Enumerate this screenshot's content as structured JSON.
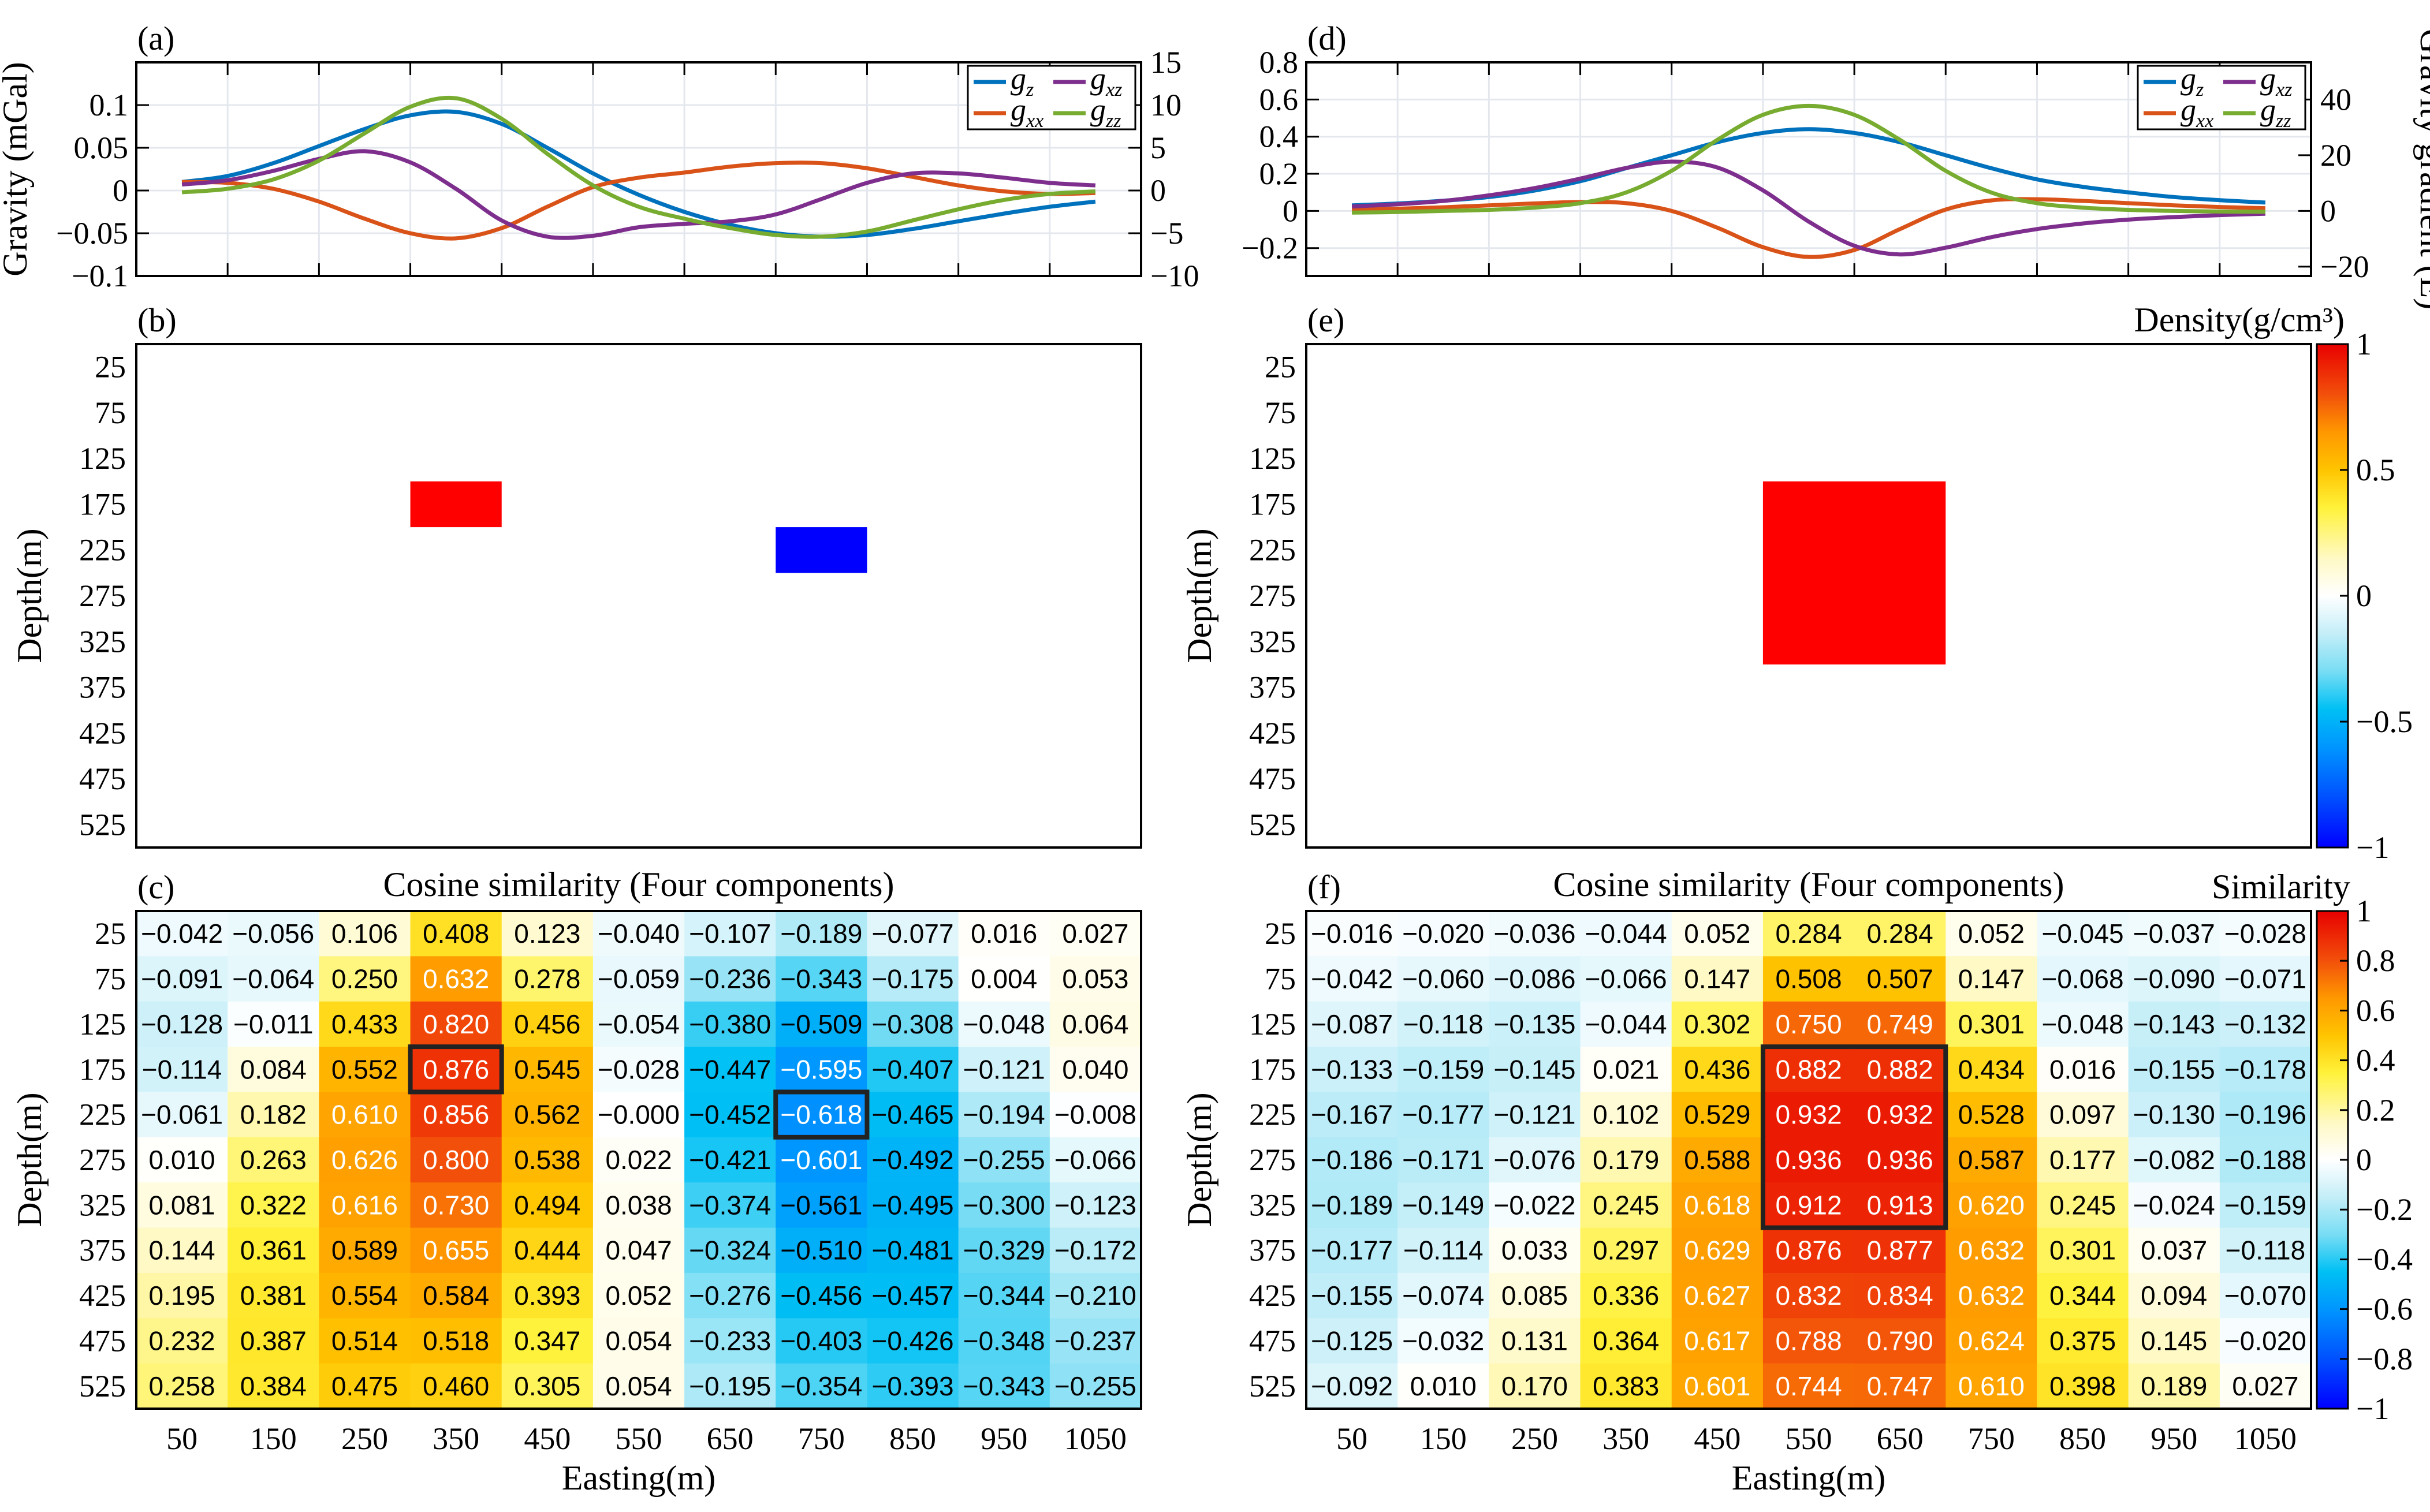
{
  "colors": {
    "gz": "#0072BD",
    "gxx": "#D95319",
    "gxz": "#7E2F8E",
    "gzz": "#77AC30",
    "positive_body": "#FF0000",
    "negative_body": "#0000FF",
    "highlight_box": "#222222"
  },
  "colormap": {
    "name": "jet-like diverging (blue-cyan-white-yellow-red)",
    "stops": [
      {
        "v": -1.0,
        "c": "#0000FF"
      },
      {
        "v": -0.8,
        "c": "#0050FF"
      },
      {
        "v": -0.6,
        "c": "#0096FF"
      },
      {
        "v": -0.45,
        "c": "#00C0F4"
      },
      {
        "v": -0.3,
        "c": "#78DDF4"
      },
      {
        "v": -0.15,
        "c": "#C4EEF8"
      },
      {
        "v": 0.0,
        "c": "#FFFFFF"
      },
      {
        "v": 0.15,
        "c": "#FFF9C4"
      },
      {
        "v": 0.35,
        "c": "#FFF23A"
      },
      {
        "v": 0.5,
        "c": "#FFC400"
      },
      {
        "v": 0.65,
        "c": "#FF9800"
      },
      {
        "v": 0.8,
        "c": "#F2500A"
      },
      {
        "v": 1.0,
        "c": "#E80000"
      }
    ]
  },
  "chart_data": [
    {
      "id": "a",
      "panel_label": "(a)",
      "type": "line",
      "x": [
        50,
        100,
        150,
        200,
        250,
        300,
        350,
        400,
        450,
        500,
        550,
        600,
        650,
        700,
        750,
        800,
        850,
        900,
        950,
        1000,
        1050
      ],
      "xlim": [
        0,
        1100
      ],
      "ylabel_left": "Gravity (mGal)",
      "ylabel_right": "",
      "ylim_left": [
        -0.1,
        0.15
      ],
      "ylim_right": [
        -10,
        15
      ],
      "yticks_left": [
        -0.1,
        -0.05,
        0,
        0.05,
        0.1
      ],
      "ytick_labels_left": [
        "−0.1",
        "−0.05",
        "0",
        "0.05",
        "0.1"
      ],
      "yticks_right": [
        -10,
        -5,
        0,
        5,
        10,
        15
      ],
      "ytick_labels_right": [
        "−10",
        "−5",
        "0",
        "5",
        "10",
        "15"
      ],
      "legend": [
        "g_z",
        "g_xx",
        "g_xz",
        "g_zz"
      ],
      "legend_position": "top-right",
      "series": [
        {
          "name": "g_z",
          "axis": "left",
          "values": [
            0.01,
            0.017,
            0.032,
            0.052,
            0.072,
            0.088,
            0.092,
            0.078,
            0.05,
            0.02,
            -0.005,
            -0.025,
            -0.04,
            -0.05,
            -0.054,
            -0.052,
            -0.045,
            -0.036,
            -0.027,
            -0.019,
            -0.013
          ]
        },
        {
          "name": "g_xx",
          "axis": "right",
          "values": [
            1.0,
            0.9,
            0.2,
            -1.3,
            -3.3,
            -5.0,
            -5.6,
            -4.4,
            -1.9,
            0.4,
            1.5,
            2.1,
            2.8,
            3.2,
            3.2,
            2.6,
            1.6,
            0.6,
            -0.1,
            -0.4,
            -0.3
          ]
        },
        {
          "name": "g_xz",
          "axis": "right",
          "values": [
            0.7,
            1.2,
            2.3,
            3.7,
            4.6,
            3.3,
            0.2,
            -3.5,
            -5.4,
            -5.3,
            -4.3,
            -3.9,
            -3.6,
            -2.8,
            -1.0,
            0.9,
            2.0,
            2.0,
            1.5,
            0.9,
            0.6
          ]
        },
        {
          "name": "g_zz",
          "axis": "right",
          "values": [
            -0.2,
            0.2,
            1.3,
            3.5,
            6.7,
            9.8,
            10.8,
            8.4,
            4.3,
            0.6,
            -1.9,
            -3.3,
            -4.4,
            -5.2,
            -5.4,
            -4.8,
            -3.5,
            -2.2,
            -1.1,
            -0.4,
            -0.1
          ]
        }
      ]
    },
    {
      "id": "d",
      "panel_label": "(d)",
      "type": "line",
      "x": [
        50,
        100,
        150,
        200,
        250,
        300,
        350,
        400,
        450,
        500,
        550,
        600,
        650,
        700,
        750,
        800,
        850,
        900,
        950,
        1000,
        1050
      ],
      "xlim": [
        0,
        1100
      ],
      "ylabel_left": "",
      "ylabel_right": "Gravity gradient (E)",
      "ylim_left": [
        -0.35,
        0.8
      ],
      "ylim_right": [
        -23.33,
        53.33
      ],
      "yticks_left": [
        -0.2,
        0,
        0.2,
        0.4,
        0.6,
        0.8
      ],
      "ytick_labels_left": [
        "−0.2",
        "0",
        "0.2",
        "0.4",
        "0.6",
        "0.8"
      ],
      "yticks_right": [
        -20,
        0,
        20,
        40
      ],
      "ytick_labels_right": [
        "−20",
        "0",
        "20",
        "40"
      ],
      "legend": [
        "g_z",
        "g_xx",
        "g_xz",
        "g_zz"
      ],
      "legend_position": "top-right",
      "series": [
        {
          "name": "g_z",
          "axis": "left",
          "values": [
            0.03,
            0.04,
            0.055,
            0.075,
            0.11,
            0.16,
            0.23,
            0.3,
            0.37,
            0.42,
            0.44,
            0.42,
            0.37,
            0.3,
            0.23,
            0.17,
            0.13,
            0.1,
            0.075,
            0.058,
            0.045
          ]
        },
        {
          "name": "g_xx",
          "axis": "right",
          "values": [
            0.5,
            0.8,
            1.3,
            2.0,
            2.7,
            3.2,
            2.8,
            0.0,
            -6.0,
            -13.0,
            -16.5,
            -14.0,
            -6.5,
            0.5,
            3.8,
            4.2,
            3.6,
            2.8,
            2.0,
            1.4,
            1.0
          ]
        },
        {
          "name": "g_xz",
          "axis": "right",
          "values": [
            1.6,
            2.4,
            3.6,
            5.6,
            8.2,
            11.6,
            15.4,
            17.7,
            15.6,
            7.4,
            -3.8,
            -12.5,
            -15.6,
            -13.2,
            -9.4,
            -6.5,
            -4.5,
            -3.1,
            -2.2,
            -1.5,
            -1.0
          ]
        },
        {
          "name": "g_zz",
          "axis": "right",
          "values": [
            -0.6,
            -0.4,
            0.0,
            0.4,
            1.2,
            2.8,
            6.6,
            14.4,
            25.5,
            34.5,
            37.7,
            34.5,
            25.5,
            14.4,
            6.6,
            2.8,
            1.2,
            0.4,
            0.0,
            -0.2,
            -0.3
          ]
        }
      ]
    },
    {
      "id": "b",
      "panel_label": "(b)",
      "type": "model",
      "ylabel": "Depth(m)",
      "ytick_labels": [
        "25",
        "75",
        "125",
        "175",
        "225",
        "275",
        "325",
        "375",
        "425",
        "475",
        "525"
      ],
      "grid_x": [
        50,
        150,
        250,
        350,
        450,
        550,
        650,
        750,
        850,
        950,
        1050
      ],
      "grid_y": [
        25,
        75,
        125,
        175,
        225,
        275,
        325,
        375,
        425,
        475,
        525
      ],
      "bodies": [
        {
          "label": "positive",
          "density": 1,
          "x_range": [
            300,
            400
          ],
          "depth_range": [
            150,
            200
          ]
        },
        {
          "label": "negative",
          "density": -1,
          "x_range": [
            700,
            800
          ],
          "depth_range": [
            200,
            250
          ]
        }
      ]
    },
    {
      "id": "e",
      "panel_label": "(e)",
      "type": "model",
      "ylabel": "Depth(m)",
      "ytick_labels": [
        "25",
        "75",
        "125",
        "175",
        "225",
        "275",
        "325",
        "375",
        "425",
        "475",
        "525"
      ],
      "colorbar_label": "Density(g/cm³)",
      "colorbar_ticks": [
        -1,
        -0.5,
        0,
        0.5,
        1
      ],
      "colorbar_tick_labels": [
        "−1",
        "−0.5",
        "0",
        "0.5",
        "1"
      ],
      "grid_x": [
        50,
        150,
        250,
        350,
        450,
        550,
        650,
        750,
        850,
        950,
        1050
      ],
      "grid_y": [
        25,
        75,
        125,
        175,
        225,
        275,
        325,
        375,
        425,
        475,
        525
      ],
      "bodies": [
        {
          "label": "positive",
          "density": 1,
          "x_range": [
            500,
            700
          ],
          "depth_range": [
            150,
            350
          ]
        }
      ]
    },
    {
      "id": "c",
      "panel_label": "(c)",
      "type": "heatmap",
      "title": "Cosine similarity (Four components)",
      "xlabel": "Easting(m)",
      "ylabel": "Depth(m)",
      "x_labels": [
        "50",
        "150",
        "250",
        "350",
        "450",
        "550",
        "650",
        "750",
        "850",
        "950",
        "1050"
      ],
      "y_labels": [
        "25",
        "75",
        "125",
        "175",
        "225",
        "275",
        "325",
        "375",
        "425",
        "475",
        "525"
      ],
      "highlight": [
        {
          "row": 3,
          "col": 3,
          "rows": 1,
          "cols": 1
        },
        {
          "row": 4,
          "col": 7,
          "rows": 1,
          "cols": 1
        }
      ],
      "labels": [
        [
          "−0.042",
          "−0.056",
          "0.106",
          "0.408",
          "0.123",
          "−0.040",
          "−0.107",
          "−0.189",
          "−0.077",
          "0.016",
          "0.027"
        ],
        [
          "−0.091",
          "−0.064",
          "0.250",
          "0.632",
          "0.278",
          "−0.059",
          "−0.236",
          "−0.343",
          "−0.175",
          "0.004",
          "0.053"
        ],
        [
          "−0.128",
          "−0.011",
          "0.433",
          "0.820",
          "0.456",
          "−0.054",
          "−0.380",
          "−0.509",
          "−0.308",
          "−0.048",
          "0.064"
        ],
        [
          "−0.114",
          "0.084",
          "0.552",
          "0.876",
          "0.545",
          "−0.028",
          "−0.447",
          "−0.595",
          "−0.407",
          "−0.121",
          "0.040"
        ],
        [
          "−0.061",
          "0.182",
          "0.610",
          "0.856",
          "0.562",
          "−0.000",
          "−0.452",
          "−0.618",
          "−0.465",
          "−0.194",
          "−0.008"
        ],
        [
          "0.010",
          "0.263",
          "0.626",
          "0.800",
          "0.538",
          "0.022",
          "−0.421",
          "−0.601",
          "−0.492",
          "−0.255",
          "−0.066"
        ],
        [
          "0.081",
          "0.322",
          "0.616",
          "0.730",
          "0.494",
          "0.038",
          "−0.374",
          "−0.561",
          "−0.495",
          "−0.300",
          "−0.123"
        ],
        [
          "0.144",
          "0.361",
          "0.589",
          "0.655",
          "0.444",
          "0.047",
          "−0.324",
          "−0.510",
          "−0.481",
          "−0.329",
          "−0.172"
        ],
        [
          "0.195",
          "0.381",
          "0.554",
          "0.584",
          "0.393",
          "0.052",
          "−0.276",
          "−0.456",
          "−0.457",
          "−0.344",
          "−0.210"
        ],
        [
          "0.232",
          "0.387",
          "0.514",
          "0.518",
          "0.347",
          "0.054",
          "−0.233",
          "−0.403",
          "−0.426",
          "−0.348",
          "−0.237"
        ],
        [
          "0.258",
          "0.384",
          "0.475",
          "0.460",
          "0.305",
          "0.054",
          "−0.195",
          "−0.354",
          "−0.393",
          "−0.343",
          "−0.255"
        ]
      ]
    },
    {
      "id": "f",
      "panel_label": "(f)",
      "type": "heatmap",
      "title": "Cosine similarity (Four components)",
      "xlabel": "Easting(m)",
      "ylabel": "Depth(m)",
      "colorbar_label": "Similarity",
      "colorbar_ticks": [
        -1,
        -0.8,
        -0.6,
        -0.4,
        -0.2,
        0,
        0.2,
        0.4,
        0.6,
        0.8,
        1
      ],
      "colorbar_tick_labels": [
        "−1",
        "−0.8",
        "−0.6",
        "−0.4",
        "−0.2",
        "0",
        "0.2",
        "0.4",
        "0.6",
        "0.8",
        "1"
      ],
      "x_labels": [
        "50",
        "150",
        "250",
        "350",
        "450",
        "550",
        "650",
        "750",
        "850",
        "950",
        "1050"
      ],
      "y_labels": [
        "25",
        "75",
        "125",
        "175",
        "225",
        "275",
        "325",
        "375",
        "425",
        "475",
        "525"
      ],
      "highlight": [
        {
          "row": 3,
          "col": 5,
          "rows": 4,
          "cols": 2
        }
      ],
      "labels": [
        [
          "−0.016",
          "−0.020",
          "−0.036",
          "−0.044",
          "0.052",
          "0.284",
          "0.284",
          "0.052",
          "−0.045",
          "−0.037",
          "−0.028"
        ],
        [
          "−0.042",
          "−0.060",
          "−0.086",
          "−0.066",
          "0.147",
          "0.508",
          "0.507",
          "0.147",
          "−0.068",
          "−0.090",
          "−0.071"
        ],
        [
          "−0.087",
          "−0.118",
          "−0.135",
          "−0.044",
          "0.302",
          "0.750",
          "0.749",
          "0.301",
          "−0.048",
          "−0.143",
          "−0.132"
        ],
        [
          "−0.133",
          "−0.159",
          "−0.145",
          "0.021",
          "0.436",
          "0.882",
          "0.882",
          "0.434",
          "0.016",
          "−0.155",
          "−0.178"
        ],
        [
          "−0.167",
          "−0.177",
          "−0.121",
          "0.102",
          "0.529",
          "0.932",
          "0.932",
          "0.528",
          "0.097",
          "−0.130",
          "−0.196"
        ],
        [
          "−0.186",
          "−0.171",
          "−0.076",
          "0.179",
          "0.588",
          "0.936",
          "0.936",
          "0.587",
          "0.177",
          "−0.082",
          "−0.188"
        ],
        [
          "−0.189",
          "−0.149",
          "−0.022",
          "0.245",
          "0.618",
          "0.912",
          "0.913",
          "0.620",
          "0.245",
          "−0.024",
          "−0.159"
        ],
        [
          "−0.177",
          "−0.114",
          "0.033",
          "0.297",
          "0.629",
          "0.876",
          "0.877",
          "0.632",
          "0.301",
          "0.037",
          "−0.118"
        ],
        [
          "−0.155",
          "−0.074",
          "0.085",
          "0.336",
          "0.627",
          "0.832",
          "0.834",
          "0.632",
          "0.344",
          "0.094",
          "−0.070"
        ],
        [
          "−0.125",
          "−0.032",
          "0.131",
          "0.364",
          "0.617",
          "0.788",
          "0.790",
          "0.624",
          "0.375",
          "0.145",
          "−0.020"
        ],
        [
          "−0.092",
          "0.010",
          "0.170",
          "0.383",
          "0.601",
          "0.744",
          "0.747",
          "0.610",
          "0.398",
          "0.189",
          "0.027"
        ]
      ]
    }
  ]
}
